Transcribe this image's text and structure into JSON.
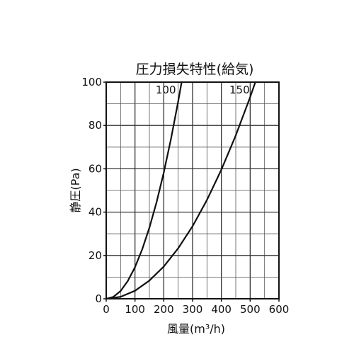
{
  "chart_data": {
    "type": "line",
    "title": "圧力損失特性(給気)",
    "xlabel": "風量(m³/h)",
    "ylabel": "静圧(Pa)",
    "xlim": [
      0,
      600
    ],
    "ylim": [
      0,
      100
    ],
    "xticks": [
      0,
      100,
      200,
      300,
      400,
      500,
      600
    ],
    "yticks": [
      0,
      20,
      40,
      60,
      80,
      100
    ],
    "grid": {
      "major": true,
      "minor": true,
      "x_minor_step": 50,
      "y_minor_step": 10
    },
    "line_color": "#111111",
    "series": [
      {
        "name": "100",
        "x": [
          0,
          25,
          50,
          75,
          100,
          125,
          150,
          175,
          200,
          225,
          250,
          262
        ],
        "y": [
          0,
          0.9,
          3.6,
          8.2,
          14.6,
          22.8,
          32.8,
          44.6,
          58.3,
          73.8,
          91.1,
          100
        ]
      },
      {
        "name": "150",
        "x": [
          0,
          50,
          100,
          150,
          200,
          250,
          300,
          350,
          400,
          450,
          500,
          518
        ],
        "y": [
          0,
          0.9,
          3.7,
          8.4,
          14.9,
          23.3,
          33.5,
          45.6,
          59.6,
          75.4,
          93.1,
          100
        ]
      }
    ]
  }
}
